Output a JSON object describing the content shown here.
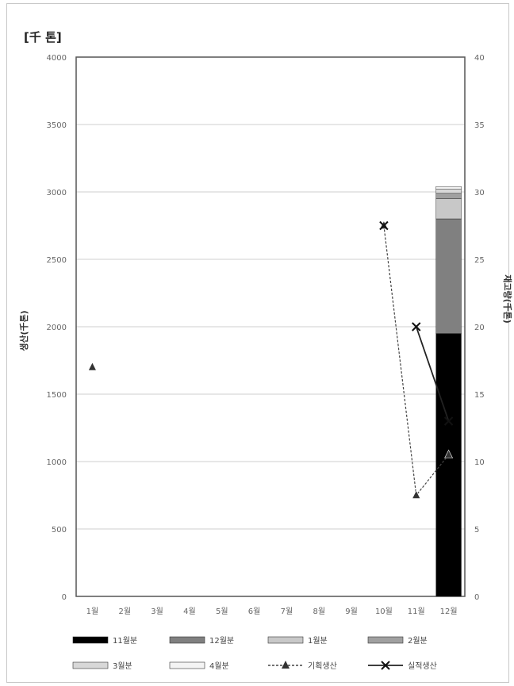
{
  "unit_label": "[千 톤]",
  "chart_data": {
    "type": "bar",
    "categories": [
      "1월",
      "2월",
      "3월",
      "4월",
      "5월",
      "6월",
      "7월",
      "8월",
      "9월",
      "10월",
      "11월",
      "12월"
    ],
    "ylabel": "생산(千톤)",
    "y2label": "재고량(千톤)",
    "ylim": [
      0,
      4000
    ],
    "y2lim": [
      0,
      40
    ],
    "yticks": [
      "4000",
      "3500",
      "3000",
      "2500",
      "2000",
      "1500",
      "1000",
      "500",
      "0"
    ],
    "y2ticks": [
      "40",
      "35",
      "30",
      "25",
      "20",
      "15",
      "10",
      "5",
      "0"
    ],
    "grid": true,
    "legend_position": "bottom",
    "stacked_series": [
      {
        "name": "11월분",
        "color": "#000000",
        "values": [
          0,
          0,
          0,
          0,
          0,
          0,
          0,
          0,
          0,
          0,
          0,
          1950
        ]
      },
      {
        "name": "12월분",
        "color": "#808080",
        "values": [
          0,
          0,
          0,
          0,
          0,
          0,
          0,
          0,
          0,
          0,
          0,
          850
        ]
      },
      {
        "name": "1월분",
        "color": "#c8c8c8",
        "values": [
          0,
          0,
          0,
          0,
          0,
          0,
          0,
          0,
          0,
          0,
          0,
          150
        ]
      },
      {
        "name": "2월분",
        "color": "#a0a0a0",
        "values": [
          0,
          0,
          0,
          0,
          0,
          0,
          0,
          0,
          0,
          0,
          0,
          40
        ]
      },
      {
        "name": "3월분",
        "color": "#d8d8d8",
        "values": [
          0,
          0,
          0,
          0,
          0,
          0,
          0,
          0,
          0,
          0,
          0,
          30
        ]
      },
      {
        "name": "4월분",
        "color": "#f4f4f4",
        "values": [
          0,
          0,
          0,
          0,
          0,
          0,
          0,
          0,
          0,
          0,
          0,
          20
        ]
      }
    ],
    "line_series": [
      {
        "name": "기획생산",
        "marker": "triangle",
        "values": [
          17,
          null,
          null,
          null,
          null,
          null,
          null,
          null,
          null,
          27.5,
          7.5,
          10.5
        ]
      },
      {
        "name": "실적생산",
        "marker": "x",
        "values": [
          null,
          null,
          null,
          null,
          null,
          null,
          null,
          null,
          null,
          27.5,
          20,
          13
        ]
      }
    ],
    "legend": [
      "11월분",
      "12월분",
      "1월분",
      "2월분",
      "3월분",
      "4월분",
      "기획생산",
      "실적생산"
    ]
  }
}
